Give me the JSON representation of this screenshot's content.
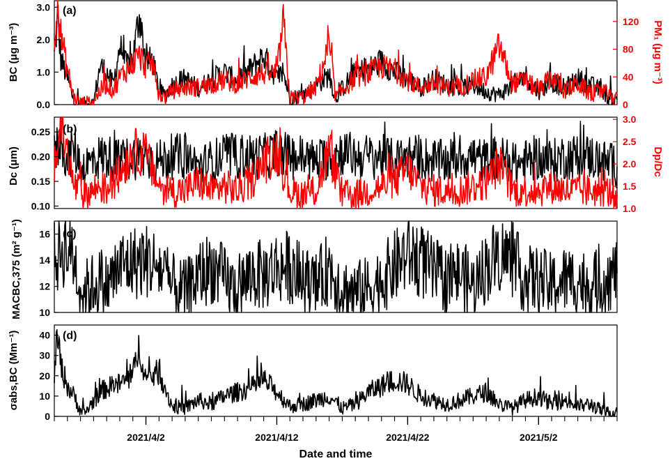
{
  "chart_data": {
    "type": "line",
    "xlabel": "Date and time",
    "x_ticks": [
      "2021/4/2",
      "2021/4/12",
      "2021/4/22",
      "2021/5/2"
    ],
    "x_start": "2021/3/26",
    "x_end": "2021/5/8",
    "panels": [
      {
        "id": "a",
        "tag": "(a)",
        "ylabel_left": "BC (μg m⁻³)",
        "ylabel_right": "PM₁ (μg m⁻³)",
        "ylim_left": [
          0,
          3.2
        ],
        "yticks_left": [
          "0.0",
          "1.0",
          "2.0",
          "3.0"
        ],
        "ylim_right": [
          0,
          150
        ],
        "yticks_right": [
          "0",
          "40",
          "80",
          "120"
        ],
        "series": [
          {
            "name": "BC",
            "axis": "left",
            "color": "#000000",
            "x": [
              "2021/3/26 00:00",
              "2021/3/26 06:00",
              "2021/3/26 12:00",
              "2021/3/27 00:00",
              "2021/3/27 12:00",
              "2021/3/28 00:00",
              "2021/3/28 12:00",
              "2021/3/29 00:00",
              "2021/3/29 12:00",
              "2021/3/30 00:00",
              "2021/3/30 12:00",
              "2021/3/31 00:00",
              "2021/3/31 12:00",
              "2021/4/1 00:00",
              "2021/4/1 12:00",
              "2021/4/2 00:00",
              "2021/4/2 12:00",
              "2021/4/3 00:00",
              "2021/4/3 12:00",
              "2021/4/4 00:00",
              "2021/4/5 00:00",
              "2021/4/6 00:00",
              "2021/4/7 00:00",
              "2021/4/8 00:00",
              "2021/4/9 00:00",
              "2021/4/10 00:00",
              "2021/4/11 00:00",
              "2021/4/12 00:00",
              "2021/4/12 12:00",
              "2021/4/13 00:00",
              "2021/4/14 00:00",
              "2021/4/15 00:00",
              "2021/4/16 00:00",
              "2021/4/16 12:00",
              "2021/4/17 00:00",
              "2021/4/18 00:00",
              "2021/4/19 00:00",
              "2021/4/20 00:00",
              "2021/4/21 00:00",
              "2021/4/22 00:00",
              "2021/4/23 00:00",
              "2021/4/24 00:00",
              "2021/4/25 00:00",
              "2021/4/26 00:00",
              "2021/4/27 00:00",
              "2021/4/28 00:00",
              "2021/4/29 00:00",
              "2021/4/30 00:00",
              "2021/5/1 00:00",
              "2021/5/2 00:00",
              "2021/5/3 00:00",
              "2021/5/4 00:00",
              "2021/5/5 00:00",
              "2021/5/6 00:00",
              "2021/5/7 00:00",
              "2021/5/7 12:00",
              "2021/5/8 00:00"
            ],
            "y": [
              1.5,
              2.6,
              1.4,
              0.8,
              0.1,
              0.02,
              0.05,
              0.05,
              1.2,
              1.0,
              0.6,
              1.8,
              1.2,
              1.4,
              2.8,
              1.3,
              1.4,
              0.4,
              0.3,
              0.6,
              0.8,
              0.5,
              0.8,
              1.0,
              0.7,
              1.1,
              1.5,
              0.8,
              1.0,
              0.2,
              0.3,
              0.6,
              0.9,
              0.2,
              0.5,
              1.0,
              1.1,
              1.3,
              1.0,
              0.8,
              0.5,
              0.8,
              0.6,
              0.5,
              0.6,
              0.4,
              0.3,
              0.6,
              0.9,
              0.4,
              0.7,
              0.5,
              0.8,
              0.6,
              0.4,
              0.1,
              0.15
            ]
          },
          {
            "name": "PM1",
            "axis": "right",
            "color": "#ff0000",
            "x": [
              "2021/3/26 00:00",
              "2021/3/26 06:00",
              "2021/3/26 12:00",
              "2021/3/27 00:00",
              "2021/3/27 12:00",
              "2021/3/28 00:00",
              "2021/3/28 12:00",
              "2021/3/29 00:00",
              "2021/3/29 12:00",
              "2021/3/30 00:00",
              "2021/3/30 12:00",
              "2021/3/31 00:00",
              "2021/3/31 12:00",
              "2021/4/1 00:00",
              "2021/4/1 12:00",
              "2021/4/2 00:00",
              "2021/4/2 12:00",
              "2021/4/3 00:00",
              "2021/4/3 12:00",
              "2021/4/4 00:00",
              "2021/4/5 00:00",
              "2021/4/6 00:00",
              "2021/4/7 00:00",
              "2021/4/8 00:00",
              "2021/4/9 00:00",
              "2021/4/10 00:00",
              "2021/4/11 00:00",
              "2021/4/12 00:00",
              "2021/4/12 12:00",
              "2021/4/13 00:00",
              "2021/4/14 00:00",
              "2021/4/15 00:00",
              "2021/4/16 00:00",
              "2021/4/16 12:00",
              "2021/4/17 00:00",
              "2021/4/18 00:00",
              "2021/4/19 00:00",
              "2021/4/20 00:00",
              "2021/4/21 00:00",
              "2021/4/22 00:00",
              "2021/4/23 00:00",
              "2021/4/24 00:00",
              "2021/4/25 00:00",
              "2021/4/26 00:00",
              "2021/4/27 00:00",
              "2021/4/28 00:00",
              "2021/4/29 00:00",
              "2021/4/30 00:00",
              "2021/5/1 00:00",
              "2021/5/2 00:00",
              "2021/5/3 00:00",
              "2021/5/4 00:00",
              "2021/5/5 00:00",
              "2021/5/6 00:00",
              "2021/5/7 00:00",
              "2021/5/7 12:00",
              "2021/5/8 00:00"
            ],
            "y": [
              80,
              145,
              100,
              50,
              10,
              2,
              3,
              5,
              20,
              30,
              20,
              40,
              50,
              60,
              70,
              55,
              60,
              15,
              10,
              20,
              25,
              25,
              30,
              35,
              30,
              40,
              45,
              45,
              120,
              10,
              10,
              25,
              85,
              10,
              20,
              40,
              45,
              55,
              50,
              35,
              25,
              30,
              25,
              25,
              35,
              40,
              85,
              30,
              35,
              20,
              40,
              20,
              30,
              15,
              20,
              10,
              15
            ]
          }
        ]
      },
      {
        "id": "b",
        "tag": "(b)",
        "ylabel_left": "Dc (μm)",
        "ylabel_right": "Dp/Dc",
        "ylim_left": [
          0.095,
          0.28
        ],
        "yticks_left": [
          "0.10",
          "0.15",
          "0.20",
          "0.25"
        ],
        "ylim_right": [
          1.0,
          3.05
        ],
        "yticks_right": [
          "1.0",
          "1.5",
          "2.0",
          "2.5",
          "3.0"
        ],
        "series": [
          {
            "name": "Dc",
            "axis": "left",
            "color": "#000000",
            "x": [
              "2021/3/26 00:00",
              "2021/3/26 12:00",
              "2021/3/27 00:00",
              "2021/3/27 12:00",
              "2021/3/28 00:00",
              "2021/3/28 06:00",
              "2021/3/29 12:00",
              "2021/3/30 00:00",
              "2021/3/31 00:00",
              "2021/4/1 00:00",
              "2021/4/2 00:00",
              "2021/4/3 00:00",
              "2021/4/4 00:00",
              "2021/4/5 00:00",
              "2021/4/6 00:00",
              "2021/4/7 00:00",
              "2021/4/8 00:00",
              "2021/4/9 00:00",
              "2021/4/10 00:00",
              "2021/4/11 00:00",
              "2021/4/12 00:00",
              "2021/4/13 00:00",
              "2021/4/14 00:00",
              "2021/4/15 00:00",
              "2021/4/16 00:00",
              "2021/4/17 00:00",
              "2021/4/18 00:00",
              "2021/4/19 00:00",
              "2021/4/20 00:00",
              "2021/4/21 00:00",
              "2021/4/22 00:00",
              "2021/4/23 00:00",
              "2021/4/24 00:00",
              "2021/4/25 00:00",
              "2021/4/26 00:00",
              "2021/4/27 00:00",
              "2021/4/28 00:00",
              "2021/4/29 00:00",
              "2021/4/30 00:00",
              "2021/5/1 00:00",
              "2021/5/2 00:00",
              "2021/5/3 00:00",
              "2021/5/4 00:00",
              "2021/5/5 00:00",
              "2021/5/6 00:00",
              "2021/5/7 00:00",
              "2021/5/8 00:00"
            ],
            "y": [
              0.2,
              0.24,
              0.19,
              0.22,
              0.18,
              0.18,
              0.2,
              0.2,
              0.19,
              0.2,
              0.2,
              0.19,
              0.2,
              0.2,
              0.18,
              0.19,
              0.2,
              0.2,
              0.2,
              0.2,
              0.21,
              0.2,
              0.2,
              0.19,
              0.2,
              0.21,
              0.2,
              0.2,
              0.2,
              0.19,
              0.2,
              0.2,
              0.19,
              0.19,
              0.2,
              0.2,
              0.19,
              0.2,
              0.18,
              0.19,
              0.2,
              0.19,
              0.2,
              0.2,
              0.2,
              0.19,
              0.18
            ]
          },
          {
            "name": "Dp/Dc",
            "axis": "right",
            "color": "#ff0000",
            "x": [
              "2021/3/26 00:00",
              "2021/3/26 12:00",
              "2021/3/27 00:00",
              "2021/3/27 12:00",
              "2021/3/28 00:00",
              "2021/3/28 06:00",
              "2021/3/29 12:00",
              "2021/3/30 00:00",
              "2021/3/31 00:00",
              "2021/4/1 00:00",
              "2021/4/2 00:00",
              "2021/4/3 00:00",
              "2021/4/4 00:00",
              "2021/4/5 00:00",
              "2021/4/6 00:00",
              "2021/4/7 00:00",
              "2021/4/8 00:00",
              "2021/4/9 00:00",
              "2021/4/10 00:00",
              "2021/4/11 00:00",
              "2021/4/12 00:00",
              "2021/4/13 00:00",
              "2021/4/14 00:00",
              "2021/4/15 00:00",
              "2021/4/16 00:00",
              "2021/4/17 00:00",
              "2021/4/18 00:00",
              "2021/4/19 00:00",
              "2021/4/20 00:00",
              "2021/4/21 00:00",
              "2021/4/22 00:00",
              "2021/4/23 00:00",
              "2021/4/24 00:00",
              "2021/4/25 00:00",
              "2021/4/26 00:00",
              "2021/4/27 00:00",
              "2021/4/28 00:00",
              "2021/4/29 00:00",
              "2021/4/30 00:00",
              "2021/5/1 00:00",
              "2021/5/2 00:00",
              "2021/5/3 00:00",
              "2021/5/4 00:00",
              "2021/5/5 00:00",
              "2021/5/6 00:00",
              "2021/5/7 00:00",
              "2021/5/8 00:00"
            ],
            "y": [
              2.0,
              2.9,
              2.2,
              1.5,
              1.4,
              1.3,
              1.5,
              1.4,
              1.8,
              2.3,
              2.2,
              1.5,
              1.4,
              1.4,
              1.6,
              1.4,
              1.5,
              1.4,
              1.6,
              2.0,
              2.3,
              1.4,
              1.3,
              1.4,
              2.3,
              1.3,
              1.3,
              1.4,
              1.5,
              1.6,
              1.9,
              1.5,
              1.4,
              1.4,
              1.4,
              1.5,
              1.6,
              2.0,
              1.4,
              1.4,
              1.4,
              1.5,
              1.4,
              1.4,
              1.4,
              1.4,
              1.3
            ]
          }
        ]
      },
      {
        "id": "c",
        "tag": "(c)",
        "ylabel_left": "MACBC,375 (m² g⁻¹)",
        "ylim_left": [
          10,
          17
        ],
        "yticks_left": [
          "10",
          "12",
          "14",
          "16"
        ],
        "series": [
          {
            "name": "MAC",
            "axis": "left",
            "color": "#000000",
            "x": [
              "2021/3/26 00:00",
              "2021/3/26 12:00",
              "2021/3/27 00:00",
              "2021/3/27 12:00",
              "2021/3/28 00:00",
              "2021/3/28 06:00",
              "2021/3/29 12:00",
              "2021/3/30 00:00",
              "2021/3/31 00:00",
              "2021/4/1 00:00",
              "2021/4/2 00:00",
              "2021/4/3 00:00",
              "2021/4/4 00:00",
              "2021/4/5 00:00",
              "2021/4/6 00:00",
              "2021/4/7 00:00",
              "2021/4/8 00:00",
              "2021/4/9 00:00",
              "2021/4/10 00:00",
              "2021/4/11 00:00",
              "2021/4/12 00:00",
              "2021/4/13 00:00",
              "2021/4/14 00:00",
              "2021/4/15 00:00",
              "2021/4/16 00:00",
              "2021/4/17 00:00",
              "2021/4/18 00:00",
              "2021/4/19 00:00",
              "2021/4/20 00:00",
              "2021/4/21 00:00",
              "2021/4/22 00:00",
              "2021/4/23 00:00",
              "2021/4/24 00:00",
              "2021/4/25 00:00",
              "2021/4/26 00:00",
              "2021/4/27 00:00",
              "2021/4/28 00:00",
              "2021/4/29 00:00",
              "2021/4/30 00:00",
              "2021/5/1 00:00",
              "2021/5/2 00:00",
              "2021/5/3 00:00",
              "2021/5/4 00:00",
              "2021/5/5 00:00",
              "2021/5/6 00:00",
              "2021/5/7 00:00",
              "2021/5/8 00:00"
            ],
            "y": [
              14.0,
              14.8,
              15.0,
              14.2,
              12.0,
              11.5,
              12.5,
              12.0,
              13.5,
              13.8,
              14.0,
              13.5,
              12.0,
              11.5,
              12.8,
              13.5,
              12.5,
              11.5,
              13.0,
              12.8,
              13.5,
              13.5,
              12.5,
              12.0,
              13.5,
              11.8,
              11.5,
              11.8,
              12.5,
              13.5,
              14.5,
              14.0,
              13.0,
              12.5,
              13.0,
              12.0,
              13.5,
              14.5,
              14.0,
              12.5,
              12.5,
              12.0,
              12.5,
              12.5,
              12.0,
              12.5,
              13.0
            ]
          }
        ]
      },
      {
        "id": "d",
        "tag": "(d)",
        "ylabel_left": "σabs,BC (Mm⁻¹)",
        "ylim_left": [
          0,
          45
        ],
        "yticks_left": [
          "0",
          "10",
          "20",
          "30",
          "40"
        ],
        "series": [
          {
            "name": "sigma_abs_BC",
            "axis": "left",
            "color": "#000000",
            "x": [
              "2021/3/26 00:00",
              "2021/3/26 06:00",
              "2021/3/26 12:00",
              "2021/3/27 00:00",
              "2021/3/27 12:00",
              "2021/3/28 00:00",
              "2021/3/28 06:00",
              "2021/3/29 12:00",
              "2021/3/30 00:00",
              "2021/3/31 00:00",
              "2021/4/1 00:00",
              "2021/4/1 12:00",
              "2021/4/2 00:00",
              "2021/4/3 00:00",
              "2021/4/4 00:00",
              "2021/4/5 00:00",
              "2021/4/6 00:00",
              "2021/4/7 00:00",
              "2021/4/8 00:00",
              "2021/4/9 00:00",
              "2021/4/10 00:00",
              "2021/4/11 00:00",
              "2021/4/12 00:00",
              "2021/4/13 00:00",
              "2021/4/14 00:00",
              "2021/4/15 00:00",
              "2021/4/16 00:00",
              "2021/4/17 00:00",
              "2021/4/18 00:00",
              "2021/4/19 00:00",
              "2021/4/20 00:00",
              "2021/4/21 00:00",
              "2021/4/22 00:00",
              "2021/4/23 00:00",
              "2021/4/24 00:00",
              "2021/4/25 00:00",
              "2021/4/26 00:00",
              "2021/4/27 00:00",
              "2021/4/28 00:00",
              "2021/4/29 00:00",
              "2021/4/30 00:00",
              "2021/5/1 00:00",
              "2021/5/2 00:00",
              "2021/5/3 00:00",
              "2021/5/4 00:00",
              "2021/5/5 00:00",
              "2021/5/6 00:00",
              "2021/5/7 00:00",
              "2021/5/8 00:00"
            ],
            "y": [
              22,
              40,
              25,
              15,
              10,
              3,
              1,
              12,
              14,
              16,
              20,
              35,
              18,
              22,
              5,
              4,
              8,
              6,
              10,
              12,
              14,
              18,
              12,
              5,
              6,
              8,
              10,
              4,
              6,
              12,
              15,
              18,
              16,
              10,
              8,
              6,
              8,
              10,
              12,
              6,
              4,
              8,
              10,
              6,
              8,
              5,
              6,
              2,
              2
            ]
          }
        ]
      }
    ]
  }
}
